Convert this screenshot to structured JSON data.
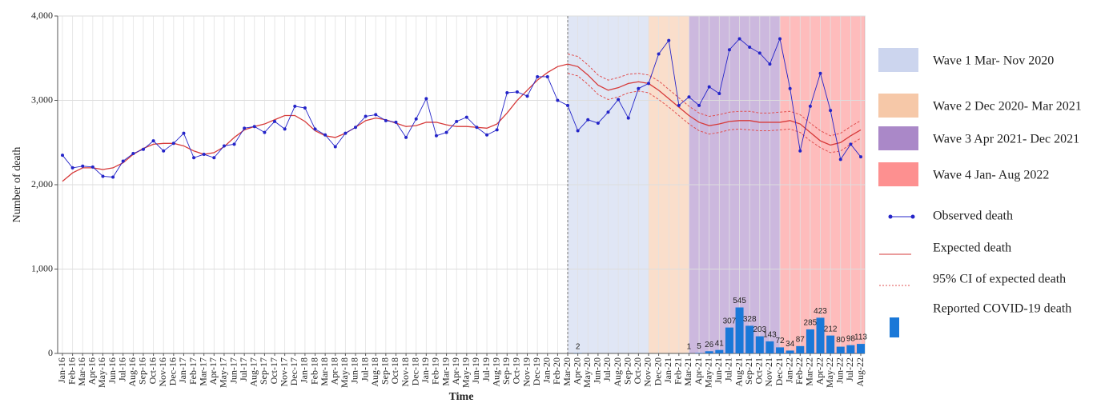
{
  "chart_data": {
    "type": "line",
    "y_label": "Number of death",
    "x_label": "Time",
    "ylim": [
      0,
      4000
    ],
    "yticks": [
      0,
      {
        "value": 1000,
        "label": "1,000"
      },
      {
        "value": 2000,
        "label": "2,000"
      },
      {
        "value": 3000,
        "label": "3,000"
      },
      {
        "value": 4000,
        "label": "4,000"
      }
    ],
    "grid": true,
    "categories": [
      "Jan-16",
      "Feb-16",
      "Mar-16",
      "Apr-16",
      "May-16",
      "Jun-16",
      "Jul-16",
      "Aug-16",
      "Sep-16",
      "Oct-16",
      "Nov-16",
      "Dec-16",
      "Jan-17",
      "Feb-17",
      "Mar-17",
      "Apr-17",
      "May-17",
      "Jun-17",
      "Jul-17",
      "Aug-17",
      "Sep-17",
      "Oct-17",
      "Nov-17",
      "Dec-17",
      "Jan-18",
      "Feb-18",
      "Mar-18",
      "Apr-18",
      "May-18",
      "Jun-18",
      "Jul-18",
      "Aug-18",
      "Sep-18",
      "Oct-18",
      "Nov-18",
      "Dec-18",
      "Jan-19",
      "Feb-19",
      "Mar-19",
      "Apr-19",
      "May-19",
      "Jun-19",
      "Jul-19",
      "Aug-19",
      "Sep-19",
      "Oct-19",
      "Nov-19",
      "Dec-19",
      "Jan-20",
      "Feb-20",
      "Mar-20",
      "Apr-20",
      "May-20",
      "Jun-20",
      "Jul-20",
      "Aug-20",
      "Sep-20",
      "Oct-20",
      "Nov-20",
      "Dec-20",
      "Jan-21",
      "Feb-21",
      "Mar-21",
      "Apr-21",
      "May-21",
      "Jun-21",
      "Jul-21",
      "Aug-21",
      "Sep-21",
      "Oct-21",
      "Nov-21",
      "Dec-21",
      "Jan-22",
      "Feb-22",
      "Mar-22",
      "Apr-22",
      "May-22",
      "Jun-22",
      "Jul-22",
      "Aug-22"
    ],
    "waves": [
      {
        "name": "Wave 1 Mar- Nov 2020",
        "color": "#ccd5ee",
        "start": "Mar-20",
        "end": "Nov-20"
      },
      {
        "name": "Wave 2 Dec 2020- Mar 2021",
        "color": "#f6c8a8",
        "start": "Nov-20",
        "end": "Mar-21"
      },
      {
        "name": "Wave 3 Apr 2021- Dec 2021",
        "color": "#aa88c8",
        "start": "Mar-21",
        "end": "Dec-21"
      },
      {
        "name": "Wave 4 Jan- Aug 2022",
        "color": "#fd9090",
        "start": "Dec-21",
        "end": "Aug-22"
      }
    ],
    "series": [
      {
        "name": "Observed death",
        "color": "#2424c8",
        "values": [
          2350,
          2200,
          2220,
          2210,
          2100,
          2090,
          2280,
          2370,
          2420,
          2520,
          2400,
          2490,
          2610,
          2320,
          2360,
          2320,
          2460,
          2480,
          2670,
          2690,
          2620,
          2750,
          2660,
          2930,
          2910,
          2660,
          2590,
          2450,
          2610,
          2680,
          2810,
          2830,
          2760,
          2740,
          2560,
          2780,
          3020,
          2580,
          2620,
          2750,
          2800,
          2680,
          2590,
          2650,
          3090,
          3100,
          3050,
          3280,
          3280,
          3000,
          2940,
          2640,
          2770,
          2730,
          2860,
          3010,
          2790,
          3140,
          3200,
          3550,
          3710,
          2940,
          3040,
          2940,
          3160,
          3080,
          3600,
          3730,
          3630,
          3560,
          3430,
          3730,
          3140,
          2400,
          2930,
          3320,
          2880,
          2300,
          2480,
          2330
        ]
      },
      {
        "name": "Expected death",
        "color": "#d63a3a",
        "values": [
          2040,
          2140,
          2200,
          2200,
          2180,
          2200,
          2260,
          2360,
          2430,
          2480,
          2490,
          2490,
          2460,
          2400,
          2360,
          2380,
          2450,
          2560,
          2650,
          2690,
          2720,
          2770,
          2820,
          2820,
          2750,
          2640,
          2580,
          2560,
          2610,
          2680,
          2760,
          2790,
          2770,
          2730,
          2690,
          2700,
          2740,
          2740,
          2710,
          2690,
          2690,
          2680,
          2670,
          2720,
          2850,
          3000,
          3120,
          3240,
          3330,
          3400,
          3430,
          3400,
          3300,
          3180,
          3120,
          3150,
          3200,
          3220,
          3200,
          3120,
          3020,
          2920,
          2820,
          2740,
          2700,
          2720,
          2750,
          2760,
          2760,
          2740,
          2740,
          2740,
          2760,
          2720,
          2620,
          2520,
          2470,
          2500,
          2580,
          2650
        ]
      },
      {
        "name": "95% CI of expected death",
        "color": "#e05050",
        "upper": [
          null,
          null,
          null,
          null,
          null,
          null,
          null,
          null,
          null,
          null,
          null,
          null,
          null,
          null,
          null,
          null,
          null,
          null,
          null,
          null,
          null,
          null,
          null,
          null,
          null,
          null,
          null,
          null,
          null,
          null,
          null,
          null,
          null,
          null,
          null,
          null,
          null,
          null,
          null,
          null,
          null,
          null,
          null,
          null,
          null,
          null,
          null,
          null,
          null,
          null,
          3550,
          3520,
          3420,
          3300,
          3240,
          3270,
          3310,
          3320,
          3300,
          3230,
          3130,
          3030,
          2930,
          2850,
          2810,
          2830,
          2860,
          2870,
          2870,
          2850,
          2850,
          2860,
          2870,
          2830,
          2730,
          2640,
          2580,
          2610,
          2690,
          2760
        ],
        "lower": [
          null,
          null,
          null,
          null,
          null,
          null,
          null,
          null,
          null,
          null,
          null,
          null,
          null,
          null,
          null,
          null,
          null,
          null,
          null,
          null,
          null,
          null,
          null,
          null,
          null,
          null,
          null,
          null,
          null,
          null,
          null,
          null,
          null,
          null,
          null,
          null,
          null,
          null,
          null,
          null,
          null,
          null,
          null,
          null,
          null,
          null,
          null,
          null,
          null,
          null,
          3320,
          3290,
          3190,
          3070,
          3010,
          3040,
          3090,
          3110,
          3090,
          3010,
          2920,
          2820,
          2720,
          2640,
          2600,
          2620,
          2650,
          2660,
          2650,
          2640,
          2640,
          2650,
          2660,
          2620,
          2520,
          2440,
          2380,
          2400,
          2480,
          2550
        ]
      },
      {
        "name": "Reported COVID-19 death",
        "color": "#1a78d8",
        "values": [
          null,
          null,
          null,
          null,
          null,
          null,
          null,
          null,
          null,
          null,
          null,
          null,
          null,
          null,
          null,
          null,
          null,
          null,
          null,
          null,
          null,
          null,
          null,
          null,
          null,
          null,
          null,
          null,
          null,
          null,
          null,
          null,
          null,
          null,
          null,
          null,
          null,
          null,
          null,
          null,
          null,
          null,
          null,
          null,
          null,
          null,
          null,
          null,
          null,
          null,
          null,
          2,
          null,
          null,
          null,
          null,
          null,
          null,
          null,
          null,
          null,
          null,
          1,
          5,
          26,
          41,
          307,
          545,
          328,
          203,
          143,
          72,
          34,
          87,
          285,
          423,
          212,
          80,
          98,
          113
        ]
      }
    ]
  }
}
